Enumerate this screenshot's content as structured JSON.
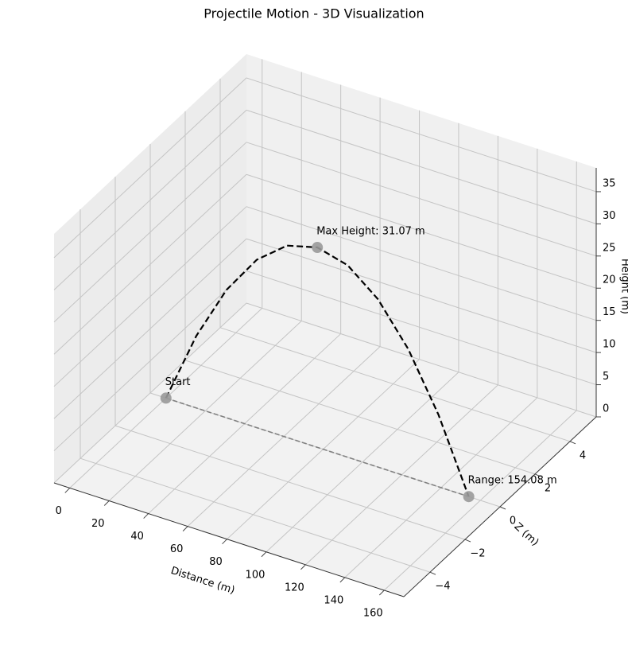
{
  "chart_data": {
    "type": "line3d",
    "title": "Projectile Motion - 3D Visualization",
    "xlabel": "Distance (m)",
    "zlabel": "Z (m)",
    "ylabel": "Height (m)",
    "xlim": [
      -8,
      170
    ],
    "zlim": [
      -5.5,
      5.5
    ],
    "ylim": [
      0,
      38.7
    ],
    "xticks": [
      0,
      20,
      40,
      60,
      80,
      100,
      120,
      140,
      160
    ],
    "zticks": [
      {
        "value": -4,
        "label": "−4"
      },
      {
        "value": -2,
        "label": "−2"
      },
      0,
      2,
      4
    ],
    "yticks": [
      0,
      5,
      10,
      15,
      20,
      25,
      30,
      35
    ],
    "grid": true,
    "series": [
      {
        "color": "#000000",
        "dashed": true,
        "x": [
          0,
          15.408,
          30.816,
          46.224,
          61.632,
          77.04,
          92.448,
          107.856,
          123.264,
          138.672,
          154.08
        ],
        "z": [
          0,
          0,
          0,
          0,
          0,
          0,
          0,
          0,
          0,
          0,
          0
        ],
        "values": [
          0,
          11.19,
          19.88,
          26.1,
          29.83,
          31.07,
          29.83,
          26.1,
          19.88,
          11.19,
          0
        ]
      },
      {
        "color": "#808080",
        "dashed": true,
        "x": [
          0,
          154.08
        ],
        "z": [
          0,
          0
        ],
        "values": [
          0,
          0
        ]
      }
    ],
    "points": {
      "color": "#999999",
      "x": [
        0,
        77.04,
        154.08
      ],
      "z": [
        0,
        0,
        0
      ],
      "values": [
        0,
        31.07,
        0
      ]
    },
    "annotations": [
      "Start",
      "Max Height: 31.07 m",
      "Range: 154.08 m"
    ]
  }
}
